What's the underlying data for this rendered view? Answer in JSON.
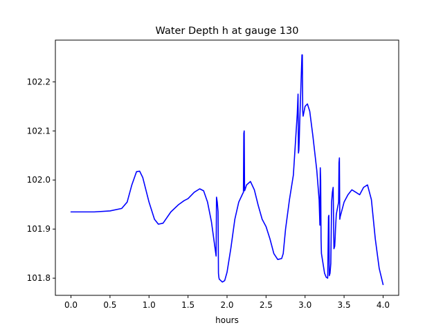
{
  "chart_data": {
    "type": "line",
    "title": "Water Depth h at gauge 130",
    "xlabel": "hours",
    "ylabel": "",
    "xlim": [
      -0.2,
      4.2
    ],
    "ylim": [
      101.765,
      102.285
    ],
    "xticks": [
      0.0,
      0.5,
      1.0,
      1.5,
      2.0,
      2.5,
      3.0,
      3.5,
      4.0
    ],
    "xtick_labels": [
      "0.0",
      "0.5",
      "1.0",
      "1.5",
      "2.0",
      "2.5",
      "3.0",
      "3.5",
      "4.0"
    ],
    "yticks": [
      101.8,
      101.9,
      102.0,
      102.1,
      102.2
    ],
    "ytick_labels": [
      "101.8",
      "101.9",
      "102.0",
      "102.1",
      "102.2"
    ],
    "grid": false,
    "legend": "none",
    "series": [
      {
        "color": "#0000ff",
        "x": [
          0.0,
          0.3,
          0.5,
          0.65,
          0.72,
          0.78,
          0.84,
          0.88,
          0.92,
          1.0,
          1.07,
          1.12,
          1.18,
          1.28,
          1.38,
          1.45,
          1.5,
          1.58,
          1.65,
          1.7,
          1.75,
          1.8,
          1.83,
          1.86,
          1.865,
          1.875,
          1.885,
          1.89,
          1.895,
          1.9,
          1.94,
          1.97,
          2.0,
          2.05,
          2.1,
          2.15,
          2.2,
          2.21,
          2.215,
          2.22,
          2.225,
          2.23,
          2.25,
          2.3,
          2.35,
          2.4,
          2.45,
          2.5,
          2.55,
          2.6,
          2.65,
          2.7,
          2.72,
          2.75,
          2.8,
          2.85,
          2.9,
          2.91,
          2.915,
          2.92,
          2.925,
          2.93,
          2.96,
          2.965,
          2.97,
          2.975,
          3.0,
          3.03,
          3.06,
          3.1,
          3.15,
          3.18,
          3.19,
          3.195,
          3.2,
          3.205,
          3.21,
          3.25,
          3.27,
          3.29,
          3.3,
          3.305,
          3.31,
          3.32,
          3.33,
          3.34,
          3.35,
          3.36,
          3.37,
          3.38,
          3.385,
          3.39,
          3.4,
          3.43,
          3.435,
          3.44,
          3.445,
          3.45,
          3.5,
          3.55,
          3.6,
          3.65,
          3.7,
          3.75,
          3.8,
          3.85,
          3.9,
          3.95,
          4.0
        ],
        "y": [
          101.935,
          101.935,
          101.937,
          101.942,
          101.955,
          101.99,
          102.017,
          102.018,
          102.005,
          101.955,
          101.92,
          101.91,
          101.912,
          101.935,
          101.95,
          101.958,
          101.962,
          101.975,
          101.982,
          101.978,
          101.955,
          101.915,
          101.88,
          101.845,
          101.965,
          101.955,
          101.935,
          101.81,
          101.802,
          101.798,
          101.792,
          101.795,
          101.812,
          101.862,
          101.92,
          101.955,
          101.972,
          101.975,
          102.095,
          102.1,
          101.978,
          101.98,
          101.99,
          101.997,
          101.98,
          101.948,
          101.92,
          101.905,
          101.88,
          101.85,
          101.838,
          101.84,
          101.85,
          101.9,
          101.96,
          102.01,
          102.135,
          102.175,
          102.055,
          102.06,
          102.08,
          102.11,
          102.255,
          102.255,
          102.14,
          102.13,
          102.15,
          102.155,
          102.14,
          102.09,
          102.02,
          101.96,
          101.908,
          102.025,
          102.0,
          101.88,
          101.85,
          101.81,
          101.802,
          101.8,
          101.925,
          101.928,
          101.805,
          101.81,
          101.83,
          101.955,
          101.975,
          101.985,
          101.86,
          101.865,
          101.88,
          101.9,
          101.93,
          101.955,
          102.035,
          102.045,
          101.92,
          101.925,
          101.955,
          101.97,
          101.98,
          101.975,
          101.97,
          101.985,
          101.99,
          101.96,
          101.88,
          101.82,
          101.787
        ]
      }
    ]
  }
}
